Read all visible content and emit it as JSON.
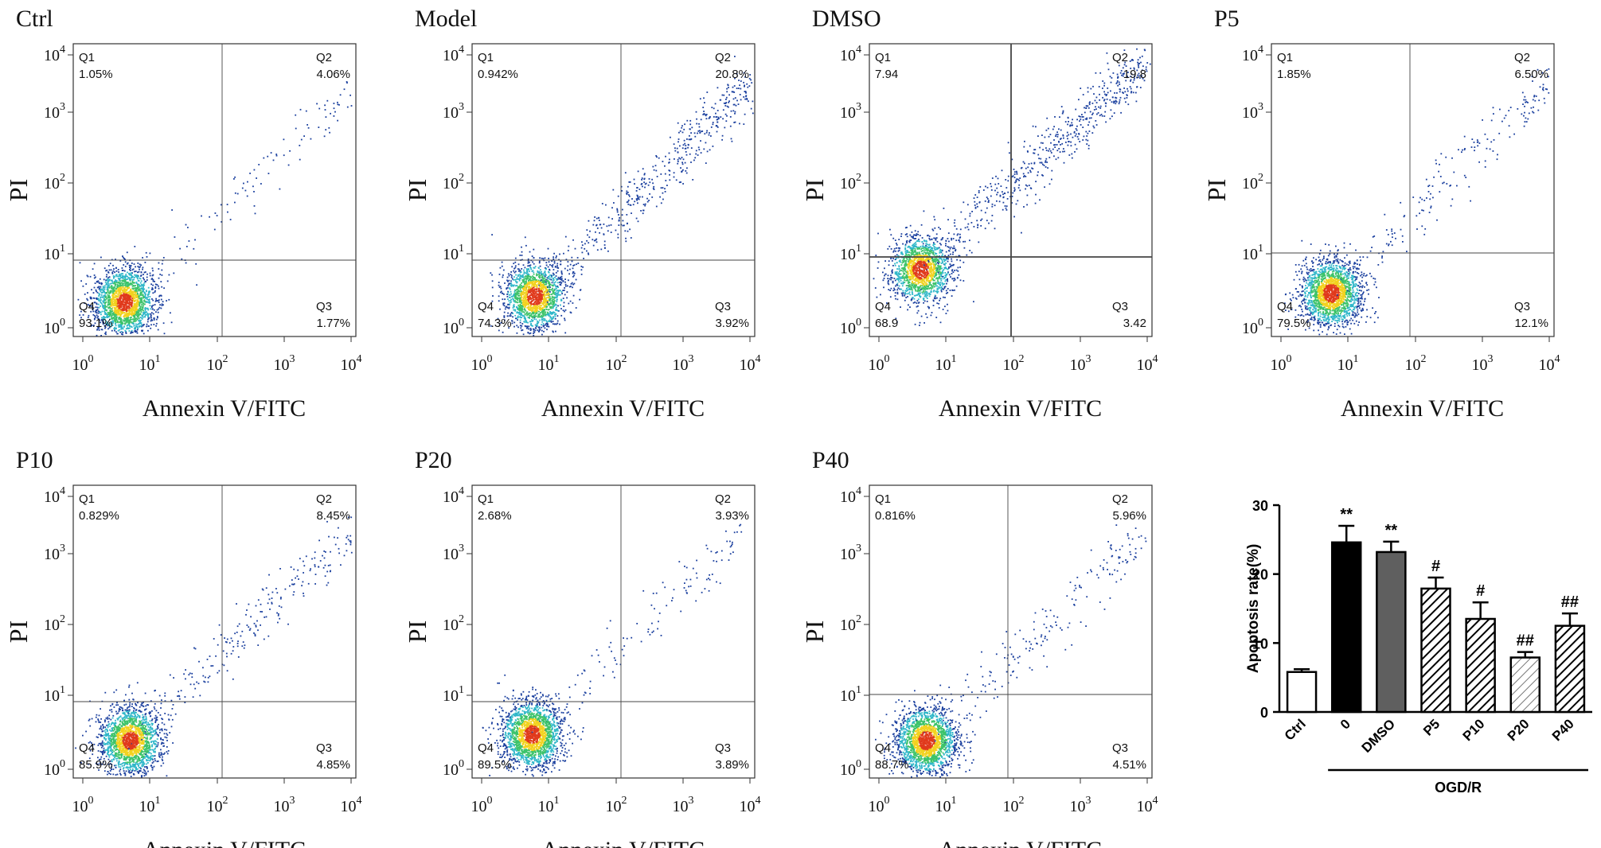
{
  "figure": {
    "panels": [
      {
        "title": "Ctrl",
        "q1": "1.05%",
        "q2": "4.06%",
        "q3": "1.77%",
        "q4": "93.1%"
      },
      {
        "title": "Model",
        "q1": "0.942%",
        "q2": "20.8%",
        "q3": "3.92%",
        "q4": "74.3%"
      },
      {
        "title": "DMSO",
        "q1": "7.94",
        "q2": "19.8",
        "q3": "3.42",
        "q4": "68.9"
      },
      {
        "title": "P5",
        "q1": "1.85%",
        "q2": "6.50%",
        "q3": "12.1%",
        "q4": "79.5%"
      },
      {
        "title": "P10",
        "q1": "0.829%",
        "q2": "8.45%",
        "q3": "4.85%",
        "q4": "85.9%"
      },
      {
        "title": "P20",
        "q1": "2.68%",
        "q2": "3.93%",
        "q3": "3.89%",
        "q4": "89.5%"
      },
      {
        "title": "P40",
        "q1": "0.816%",
        "q2": "5.96%",
        "q3": "4.51%",
        "q4": "88.7%"
      }
    ],
    "scatter_axes": {
      "xlabel": "Annexin V/FITC",
      "ylabel": "PI",
      "quadrant_names": [
        "Q1",
        "Q2",
        "Q3",
        "Q4"
      ],
      "tick_base": "10",
      "tick_exponents": [
        "0",
        "1",
        "2",
        "3",
        "4"
      ]
    }
  },
  "chart_data": {
    "type": "bar",
    "ylabel": "Apoptosis rate(%)",
    "ylim": [
      0,
      30
    ],
    "yticks": [
      "0",
      "10",
      "20",
      "30"
    ],
    "categories": [
      "Ctrl",
      "0",
      "DMSO",
      "P5",
      "P10",
      "P20",
      "P40"
    ],
    "values": [
      5.8,
      24.6,
      23.2,
      17.9,
      13.5,
      7.9,
      12.5
    ],
    "errors": [
      0.4,
      2.4,
      1.5,
      1.6,
      2.4,
      0.8,
      1.8
    ],
    "annotations": [
      "",
      "**",
      "**",
      "#",
      "#",
      "##",
      "##"
    ],
    "fills": [
      "white",
      "black",
      "gray",
      "hatch-dark",
      "hatch-dark",
      "hatch-light",
      "hatch-dark"
    ],
    "group_label": "OGD/R"
  }
}
